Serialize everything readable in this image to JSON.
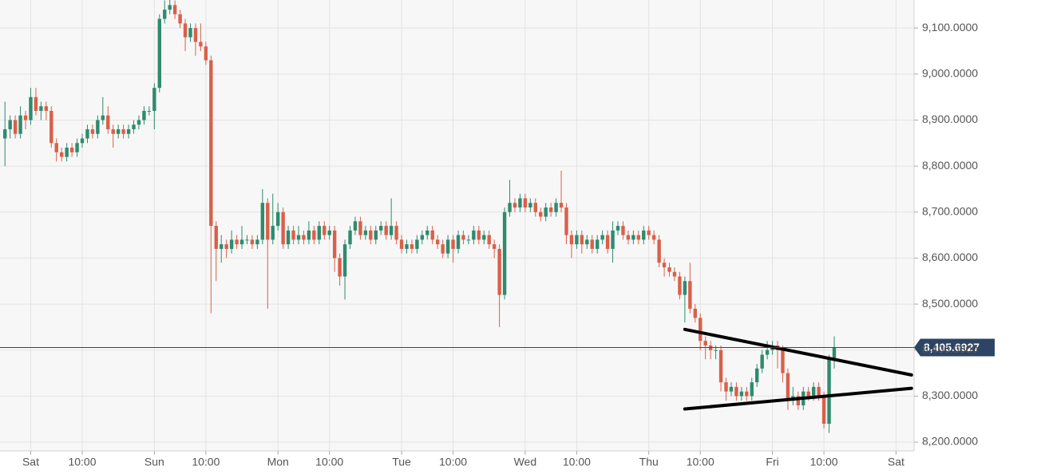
{
  "chart_data": {
    "type": "candlestick",
    "categories": [
      null,
      null,
      null,
      null,
      null,
      "Sat",
      null,
      null,
      null,
      null,
      null,
      null,
      null,
      null,
      null,
      "10:00",
      null,
      null,
      null,
      null,
      null,
      null,
      null,
      null,
      null,
      null,
      null,
      null,
      null,
      "Sun",
      null,
      null,
      null,
      null,
      null,
      null,
      null,
      null,
      null,
      "10:00",
      null,
      null,
      null,
      null,
      null,
      null,
      null,
      null,
      null,
      null,
      null,
      null,
      null,
      "Mon",
      null,
      null,
      null,
      null,
      null,
      null,
      null,
      null,
      null,
      "10:00",
      null,
      null,
      null,
      null,
      null,
      null,
      null,
      null,
      null,
      null,
      null,
      null,
      null,
      "Tue",
      null,
      null,
      null,
      null,
      null,
      null,
      null,
      null,
      null,
      "10:00",
      null,
      null,
      null,
      null,
      null,
      null,
      null,
      null,
      null,
      null,
      null,
      null,
      null,
      "Wed",
      null,
      null,
      null,
      null,
      null,
      null,
      null,
      null,
      null,
      "10:00",
      null,
      null,
      null,
      null,
      null,
      null,
      null,
      null,
      null,
      null,
      null,
      null,
      null,
      "Thu",
      null,
      null,
      null,
      null,
      null,
      null,
      null,
      null,
      null,
      "10:00",
      null,
      null,
      null,
      null,
      null,
      null,
      null,
      null,
      null,
      null,
      null,
      null,
      null,
      "Fri",
      null,
      null,
      null,
      null,
      null,
      null,
      null,
      null,
      null,
      "10:00",
      null,
      null,
      null,
      null,
      null,
      null,
      null,
      null,
      null,
      null,
      null,
      null,
      null,
      "Sat",
      null,
      null,
      null
    ],
    "open": [
      8860,
      8880,
      8900,
      8870,
      8910,
      8900,
      8950,
      8920,
      8930,
      8920,
      8850,
      8830,
      8820,
      8840,
      8830,
      8850,
      8860,
      8880,
      8870,
      8900,
      8910,
      8880,
      8870,
      8880,
      8870,
      8880,
      8890,
      8900,
      8920,
      8920,
      8970,
      9120,
      9140,
      9150,
      9130,
      9110,
      9080,
      9100,
      9070,
      9060,
      9030,
      8670,
      8620,
      8630,
      8620,
      8640,
      8630,
      8640,
      8640,
      8630,
      8640,
      8720,
      8640,
      8670,
      8700,
      8630,
      8660,
      8640,
      8650,
      8640,
      8660,
      8640,
      8670,
      8650,
      8660,
      8600,
      8560,
      8630,
      8660,
      8680,
      8650,
      8660,
      8640,
      8660,
      8670,
      8650,
      8670,
      8640,
      8620,
      8630,
      8620,
      8640,
      8650,
      8660,
      8640,
      8630,
      8610,
      8640,
      8620,
      8650,
      8640,
      8640,
      8660,
      8640,
      8650,
      8630,
      8620,
      8520,
      8700,
      8720,
      8710,
      8730,
      8710,
      8720,
      8700,
      8690,
      8710,
      8700,
      8720,
      8710,
      8650,
      8630,
      8650,
      8630,
      8640,
      8620,
      8640,
      8650,
      8620,
      8660,
      8670,
      8650,
      8640,
      8650,
      8640,
      8660,
      8650,
      8640,
      8590,
      8580,
      8570,
      8560,
      8520,
      8550,
      8490,
      8470,
      8420,
      8410,
      8400,
      8400,
      8330,
      8310,
      8320,
      8300,
      8310,
      8300,
      8330,
      8360,
      8390,
      8400,
      8410,
      8400,
      8350,
      8290,
      8300,
      8280,
      8310,
      8300,
      8320,
      8300,
      8240,
      8380,
      null,
      null,
      null,
      null,
      null,
      null,
      null,
      null,
      null,
      null,
      null,
      null,
      null,
      null,
      null
    ],
    "high": [
      8940,
      8910,
      8910,
      8930,
      8920,
      8970,
      8970,
      8940,
      8940,
      8930,
      8860,
      8840,
      8850,
      8850,
      8860,
      8870,
      8890,
      8890,
      8910,
      8950,
      8930,
      8890,
      8890,
      8890,
      8890,
      8900,
      8910,
      8930,
      8930,
      8980,
      9130,
      9160,
      9165,
      9160,
      9140,
      9120,
      9110,
      9110,
      9110,
      9070,
      9040,
      8680,
      8650,
      8640,
      8660,
      8650,
      8670,
      8650,
      8650,
      8650,
      8750,
      8730,
      8740,
      8720,
      8710,
      8670,
      8670,
      8670,
      8660,
      8680,
      8670,
      8680,
      8680,
      8670,
      8670,
      8610,
      8640,
      8670,
      8690,
      8690,
      8670,
      8670,
      8670,
      8680,
      8680,
      8730,
      8680,
      8650,
      8640,
      8640,
      8650,
      8660,
      8670,
      8670,
      8650,
      8640,
      8650,
      8650,
      8660,
      8660,
      8650,
      8670,
      8670,
      8660,
      8660,
      8640,
      8630,
      8710,
      8770,
      8730,
      8740,
      8740,
      8730,
      8730,
      8710,
      8720,
      8720,
      8730,
      8790,
      8720,
      8660,
      8660,
      8660,
      8650,
      8650,
      8650,
      8660,
      8660,
      8680,
      8680,
      8680,
      8660,
      8660,
      8660,
      8670,
      8670,
      8660,
      8650,
      8600,
      8590,
      8580,
      8570,
      8560,
      8590,
      8500,
      8480,
      8430,
      8420,
      8410,
      8410,
      8340,
      8330,
      8330,
      8320,
      8320,
      8340,
      8370,
      8400,
      8420,
      8420,
      8420,
      8410,
      8360,
      8320,
      8310,
      8320,
      8320,
      8330,
      8330,
      8310,
      8390,
      8430,
      null,
      null,
      null,
      null,
      null,
      null,
      null,
      null,
      null,
      null,
      null,
      null,
      null,
      null,
      null
    ],
    "low": [
      8800,
      8860,
      8860,
      8860,
      8880,
      8890,
      8910,
      8900,
      8900,
      8840,
      8810,
      8810,
      8810,
      8820,
      8820,
      8840,
      8850,
      8860,
      8860,
      8890,
      8870,
      8840,
      8860,
      8860,
      8860,
      8870,
      8880,
      8890,
      8910,
      8880,
      8960,
      9110,
      9130,
      9120,
      9100,
      9050,
      9070,
      9040,
      9050,
      9020,
      8480,
      8550,
      8590,
      8600,
      8610,
      8620,
      8620,
      8630,
      8620,
      8620,
      8630,
      8490,
      8630,
      8660,
      8620,
      8620,
      8630,
      8630,
      8630,
      8630,
      8630,
      8630,
      8640,
      8640,
      8570,
      8540,
      8510,
      8620,
      8650,
      8640,
      8640,
      8630,
      8630,
      8650,
      8640,
      8640,
      8630,
      8610,
      8610,
      8610,
      8610,
      8630,
      8640,
      8630,
      8620,
      8600,
      8600,
      8590,
      8610,
      8630,
      8630,
      8630,
      8630,
      8630,
      8620,
      8600,
      8450,
      8510,
      8690,
      8700,
      8700,
      8700,
      8700,
      8690,
      8680,
      8680,
      8690,
      8690,
      8700,
      8630,
      8600,
      8620,
      8610,
      8620,
      8610,
      8610,
      8630,
      8610,
      8590,
      8650,
      8640,
      8630,
      8630,
      8630,
      8630,
      8640,
      8630,
      8580,
      8560,
      8560,
      8550,
      8510,
      8460,
      8480,
      8460,
      8400,
      8380,
      8380,
      8380,
      8310,
      8290,
      8300,
      8290,
      8290,
      8290,
      8290,
      8320,
      8350,
      8380,
      8390,
      8360,
      8330,
      8270,
      8280,
      8270,
      8270,
      8290,
      8290,
      8290,
      8230,
      8220,
      8360,
      null,
      null,
      null,
      null,
      null,
      null,
      null,
      null,
      null,
      null,
      null,
      null,
      null,
      null,
      null
    ],
    "close": [
      8880,
      8900,
      8870,
      8910,
      8900,
      8950,
      8920,
      8930,
      8920,
      8850,
      8830,
      8820,
      8840,
      8830,
      8850,
      8860,
      8880,
      8870,
      8900,
      8910,
      8880,
      8870,
      8880,
      8870,
      8880,
      8890,
      8900,
      8920,
      8920,
      8970,
      9120,
      9140,
      9150,
      9130,
      9110,
      9080,
      9100,
      9070,
      9060,
      9030,
      8670,
      8620,
      8630,
      8620,
      8640,
      8630,
      8640,
      8640,
      8630,
      8640,
      8720,
      8640,
      8670,
      8700,
      8630,
      8660,
      8640,
      8650,
      8640,
      8660,
      8640,
      8670,
      8650,
      8660,
      8600,
      8560,
      8630,
      8660,
      8680,
      8650,
      8660,
      8640,
      8660,
      8670,
      8650,
      8670,
      8640,
      8620,
      8630,
      8620,
      8640,
      8650,
      8660,
      8640,
      8630,
      8610,
      8640,
      8620,
      8650,
      8640,
      8640,
      8660,
      8640,
      8650,
      8630,
      8620,
      8520,
      8700,
      8720,
      8710,
      8730,
      8710,
      8720,
      8700,
      8690,
      8710,
      8700,
      8720,
      8710,
      8650,
      8630,
      8650,
      8630,
      8640,
      8620,
      8640,
      8650,
      8620,
      8660,
      8670,
      8650,
      8640,
      8650,
      8640,
      8660,
      8650,
      8640,
      8590,
      8580,
      8570,
      8560,
      8520,
      8550,
      8490,
      8470,
      8420,
      8410,
      8400,
      8400,
      8330,
      8310,
      8320,
      8300,
      8310,
      8300,
      8330,
      8360,
      8390,
      8400,
      8410,
      8400,
      8350,
      8290,
      8300,
      8280,
      8310,
      8300,
      8320,
      8300,
      8240,
      8380,
      8405.6927,
      null,
      null,
      null,
      null,
      null,
      null,
      null,
      null,
      null,
      null,
      null,
      null,
      null,
      null,
      null
    ],
    "up_color": "#2e8b6e",
    "down_color": "#d9604a",
    "ylim": [
      8181,
      9161
    ],
    "yticks": [
      {
        "value": 8200,
        "label": "8,200.0000"
      },
      {
        "value": 8300,
        "label": "8,300.0000"
      },
      {
        "value": 8400,
        "label": "8,400.0000"
      },
      {
        "value": 8500,
        "label": "8,500.0000"
      },
      {
        "value": 8600,
        "label": "8,600.0000"
      },
      {
        "value": 8700,
        "label": "8,700.0000"
      },
      {
        "value": 8800,
        "label": "8,800.0000"
      },
      {
        "value": 8900,
        "label": "8,900.0000"
      },
      {
        "value": 9000,
        "label": "9,000.0000"
      },
      {
        "value": 9100,
        "label": "9,100.0000"
      }
    ],
    "grid": true,
    "last_price": {
      "value": 8405.6927,
      "label": "8,405.6927"
    },
    "last_price_color": "#2c4566",
    "trendlines": [
      {
        "x_index": [
          132,
          176
        ],
        "y": [
          8445,
          8346
        ]
      },
      {
        "x_index": [
          132,
          176
        ],
        "y": [
          8272,
          8317
        ]
      }
    ],
    "trendline_color": "#000000"
  }
}
